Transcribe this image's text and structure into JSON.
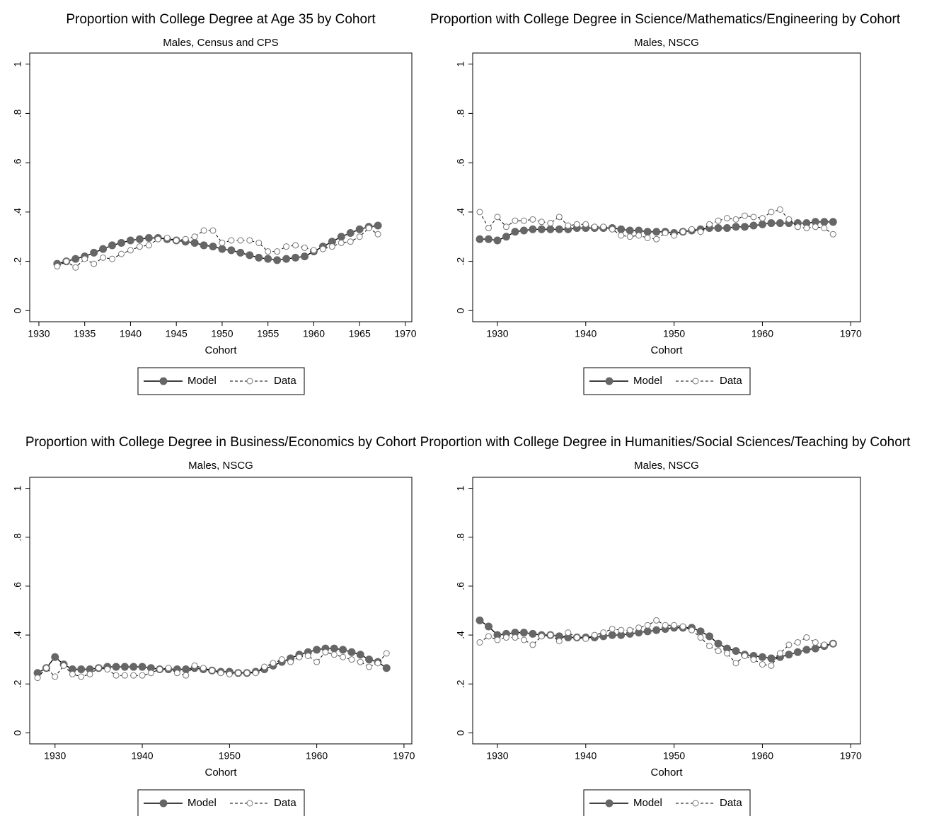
{
  "chart_data": [
    {
      "type": "line",
      "title": "Proportion with College Degree at Age 35 by Cohort",
      "subtitle": "Males, Census and CPS",
      "xlabel": "Cohort",
      "x": [
        1932,
        1933,
        1934,
        1935,
        1936,
        1937,
        1938,
        1939,
        1940,
        1941,
        1942,
        1943,
        1944,
        1945,
        1946,
        1947,
        1948,
        1949,
        1950,
        1951,
        1952,
        1953,
        1954,
        1955,
        1956,
        1957,
        1958,
        1959,
        1960,
        1961,
        1962,
        1963,
        1964,
        1965,
        1966,
        1967
      ],
      "series": [
        {
          "name": "Model",
          "color": "#666666",
          "values": [
            0.19,
            0.2,
            0.21,
            0.22,
            0.235,
            0.25,
            0.265,
            0.275,
            0.285,
            0.29,
            0.295,
            0.295,
            0.29,
            0.285,
            0.28,
            0.275,
            0.265,
            0.26,
            0.25,
            0.245,
            0.235,
            0.225,
            0.215,
            0.21,
            0.205,
            0.21,
            0.215,
            0.22,
            0.24,
            0.26,
            0.28,
            0.3,
            0.315,
            0.33,
            0.34,
            0.345
          ]
        },
        {
          "name": "Data",
          "color": "#ffffff",
          "values": [
            0.18,
            0.2,
            0.175,
            0.21,
            0.19,
            0.215,
            0.21,
            0.23,
            0.245,
            0.26,
            0.265,
            0.29,
            0.295,
            0.285,
            0.29,
            0.3,
            0.325,
            0.325,
            0.275,
            0.285,
            0.285,
            0.285,
            0.275,
            0.24,
            0.24,
            0.26,
            0.265,
            0.255,
            0.245,
            0.25,
            0.26,
            0.275,
            0.28,
            0.3,
            0.335,
            0.31
          ]
        }
      ],
      "xlim": [
        1929,
        1970.7
      ],
      "xticks": [
        1930,
        1935,
        1940,
        1945,
        1950,
        1955,
        1960,
        1965,
        1970
      ],
      "ylim": [
        -0.045,
        1.045
      ],
      "yticks": [
        0,
        {
          "value": 0.2,
          "label": ".2"
        },
        {
          "value": 0.4,
          "label": ".4"
        },
        {
          "value": 0.6,
          "label": ".6"
        },
        {
          "value": 0.8,
          "label": ".8"
        },
        1
      ]
    },
    {
      "type": "line",
      "title": "Proportion with College Degree in Science/Mathematics/Engineering by Cohort",
      "subtitle": "Males, NSCG",
      "xlabel": "Cohort",
      "x": [
        1928,
        1929,
        1930,
        1931,
        1932,
        1933,
        1934,
        1935,
        1936,
        1937,
        1938,
        1939,
        1940,
        1941,
        1942,
        1943,
        1944,
        1945,
        1946,
        1947,
        1948,
        1949,
        1950,
        1951,
        1952,
        1953,
        1954,
        1955,
        1956,
        1957,
        1958,
        1959,
        1960,
        1961,
        1962,
        1963,
        1964,
        1965,
        1966,
        1967,
        1968
      ],
      "series": [
        {
          "name": "Model",
          "color": "#666666",
          "values": [
            0.29,
            0.29,
            0.285,
            0.3,
            0.32,
            0.325,
            0.33,
            0.33,
            0.33,
            0.33,
            0.33,
            0.335,
            0.335,
            0.335,
            0.335,
            0.335,
            0.33,
            0.325,
            0.325,
            0.32,
            0.32,
            0.32,
            0.315,
            0.32,
            0.325,
            0.33,
            0.335,
            0.335,
            0.335,
            0.34,
            0.34,
            0.345,
            0.35,
            0.355,
            0.355,
            0.355,
            0.355,
            0.355,
            0.36,
            0.36,
            0.36
          ]
        },
        {
          "name": "Data",
          "color": "#ffffff",
          "values": [
            0.4,
            0.335,
            0.38,
            0.34,
            0.365,
            0.365,
            0.37,
            0.36,
            0.355,
            0.38,
            0.345,
            0.35,
            0.35,
            0.34,
            0.34,
            0.33,
            0.305,
            0.3,
            0.305,
            0.295,
            0.29,
            0.315,
            0.305,
            0.32,
            0.33,
            0.32,
            0.35,
            0.365,
            0.375,
            0.37,
            0.385,
            0.38,
            0.375,
            0.4,
            0.41,
            0.37,
            0.34,
            0.335,
            0.34,
            0.335,
            0.31
          ]
        }
      ],
      "xlim": [
        1927.2,
        1971.1
      ],
      "xticks": [
        1930,
        1940,
        1950,
        1960,
        1970
      ],
      "ylim": [
        -0.045,
        1.045
      ],
      "yticks": [
        0,
        {
          "value": 0.2,
          "label": ".2"
        },
        {
          "value": 0.4,
          "label": ".4"
        },
        {
          "value": 0.6,
          "label": ".6"
        },
        {
          "value": 0.8,
          "label": ".8"
        },
        1
      ]
    },
    {
      "type": "line",
      "title": "Proportion with College Degree in Business/Economics by Cohort",
      "subtitle": "Males, NSCG",
      "xlabel": "Cohort",
      "x": [
        1928,
        1929,
        1930,
        1931,
        1932,
        1933,
        1934,
        1935,
        1936,
        1937,
        1938,
        1939,
        1940,
        1941,
        1942,
        1943,
        1944,
        1945,
        1946,
        1947,
        1948,
        1949,
        1950,
        1951,
        1952,
        1953,
        1954,
        1955,
        1956,
        1957,
        1958,
        1959,
        1960,
        1961,
        1962,
        1963,
        1964,
        1965,
        1966,
        1967,
        1968
      ],
      "series": [
        {
          "name": "Model",
          "color": "#666666",
          "values": [
            0.245,
            0.265,
            0.31,
            0.28,
            0.26,
            0.26,
            0.26,
            0.265,
            0.27,
            0.27,
            0.27,
            0.27,
            0.27,
            0.265,
            0.26,
            0.26,
            0.26,
            0.26,
            0.265,
            0.26,
            0.255,
            0.25,
            0.25,
            0.245,
            0.245,
            0.25,
            0.26,
            0.275,
            0.29,
            0.305,
            0.32,
            0.33,
            0.34,
            0.345,
            0.345,
            0.34,
            0.33,
            0.32,
            0.3,
            0.29,
            0.265
          ]
        },
        {
          "name": "Data",
          "color": "#ffffff",
          "values": [
            0.225,
            0.265,
            0.23,
            0.275,
            0.24,
            0.23,
            0.24,
            0.265,
            0.26,
            0.235,
            0.235,
            0.235,
            0.235,
            0.245,
            0.26,
            0.265,
            0.245,
            0.235,
            0.275,
            0.265,
            0.255,
            0.245,
            0.24,
            0.245,
            0.245,
            0.245,
            0.27,
            0.285,
            0.3,
            0.29,
            0.31,
            0.315,
            0.29,
            0.33,
            0.32,
            0.31,
            0.3,
            0.29,
            0.27,
            0.285,
            0.325
          ]
        }
      ],
      "xlim": [
        1927.1,
        1970.9
      ],
      "xticks": [
        1930,
        1940,
        1950,
        1960,
        1970
      ],
      "ylim": [
        -0.045,
        1.045
      ],
      "yticks": [
        0,
        {
          "value": 0.2,
          "label": ".2"
        },
        {
          "value": 0.4,
          "label": ".4"
        },
        {
          "value": 0.6,
          "label": ".6"
        },
        {
          "value": 0.8,
          "label": ".8"
        },
        1
      ]
    },
    {
      "type": "line",
      "title": "Proportion with College Degree in Humanities/Social Sciences/Teaching by Cohort",
      "subtitle": "Males, NSCG",
      "xlabel": "Cohort",
      "x": [
        1928,
        1929,
        1930,
        1931,
        1932,
        1933,
        1934,
        1935,
        1936,
        1937,
        1938,
        1939,
        1940,
        1941,
        1942,
        1943,
        1944,
        1945,
        1946,
        1947,
        1948,
        1949,
        1950,
        1951,
        1952,
        1953,
        1954,
        1955,
        1956,
        1957,
        1958,
        1959,
        1960,
        1961,
        1962,
        1963,
        1964,
        1965,
        1966,
        1967,
        1968
      ],
      "series": [
        {
          "name": "Model",
          "color": "#666666",
          "values": [
            0.46,
            0.435,
            0.4,
            0.405,
            0.41,
            0.41,
            0.405,
            0.4,
            0.4,
            0.395,
            0.39,
            0.39,
            0.39,
            0.39,
            0.395,
            0.4,
            0.4,
            0.405,
            0.41,
            0.415,
            0.42,
            0.425,
            0.43,
            0.43,
            0.43,
            0.415,
            0.395,
            0.365,
            0.345,
            0.335,
            0.32,
            0.315,
            0.31,
            0.305,
            0.31,
            0.32,
            0.33,
            0.34,
            0.345,
            0.355,
            0.365
          ]
        },
        {
          "name": "Data",
          "color": "#ffffff",
          "values": [
            0.37,
            0.395,
            0.38,
            0.39,
            0.39,
            0.38,
            0.36,
            0.395,
            0.4,
            0.375,
            0.41,
            0.39,
            0.385,
            0.4,
            0.41,
            0.425,
            0.42,
            0.42,
            0.43,
            0.44,
            0.46,
            0.44,
            0.44,
            0.435,
            0.42,
            0.39,
            0.355,
            0.335,
            0.325,
            0.285,
            0.315,
            0.3,
            0.28,
            0.275,
            0.325,
            0.36,
            0.37,
            0.39,
            0.37,
            0.36,
            0.365
          ]
        }
      ],
      "xlim": [
        1927.2,
        1971.1
      ],
      "xticks": [
        1930,
        1940,
        1950,
        1960,
        1970
      ],
      "ylim": [
        -0.045,
        1.045
      ],
      "yticks": [
        0,
        {
          "value": 0.2,
          "label": ".2"
        },
        {
          "value": 0.4,
          "label": ".4"
        },
        {
          "value": 0.6,
          "label": ".6"
        },
        {
          "value": 0.8,
          "label": ".8"
        },
        1
      ]
    }
  ]
}
